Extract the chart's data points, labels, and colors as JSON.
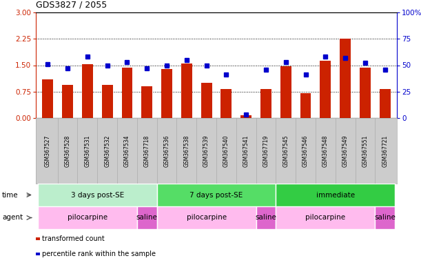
{
  "title": "GDS3827 / 2055",
  "samples": [
    "GSM367527",
    "GSM367528",
    "GSM367531",
    "GSM367532",
    "GSM367534",
    "GSM367718",
    "GSM367536",
    "GSM367538",
    "GSM367539",
    "GSM367540",
    "GSM367541",
    "GSM367719",
    "GSM367545",
    "GSM367546",
    "GSM367548",
    "GSM367549",
    "GSM367551",
    "GSM367721"
  ],
  "bar_values": [
    1.1,
    0.95,
    1.52,
    0.95,
    1.44,
    0.9,
    1.4,
    1.55,
    1.0,
    0.82,
    0.07,
    0.82,
    1.47,
    0.7,
    1.62,
    2.25,
    1.43,
    0.82
  ],
  "dot_values": [
    51,
    47,
    58,
    50,
    53,
    47,
    50,
    55,
    50,
    41,
    3,
    46,
    53,
    41,
    58,
    57,
    52,
    46
  ],
  "bar_color": "#cc2200",
  "dot_color": "#0000cc",
  "ylim_left": [
    0,
    3
  ],
  "ylim_right": [
    0,
    100
  ],
  "yticks_left": [
    0,
    0.75,
    1.5,
    2.25,
    3
  ],
  "yticks_right": [
    0,
    25,
    50,
    75,
    100
  ],
  "right_tick_labels": [
    "0",
    "25",
    "50",
    "75",
    "100%"
  ],
  "hlines": [
    0.75,
    1.5,
    2.25
  ],
  "time_groups": [
    {
      "label": "3 days post-SE",
      "start": 0,
      "end": 5,
      "color": "#bbeecc"
    },
    {
      "label": "7 days post-SE",
      "start": 6,
      "end": 11,
      "color": "#55dd66"
    },
    {
      "label": "immediate",
      "start": 12,
      "end": 17,
      "color": "#33cc44"
    }
  ],
  "agent_groups": [
    {
      "label": "pilocarpine",
      "start": 0,
      "end": 4,
      "color": "#ffbbee"
    },
    {
      "label": "saline",
      "start": 5,
      "end": 5,
      "color": "#dd66cc"
    },
    {
      "label": "pilocarpine",
      "start": 6,
      "end": 10,
      "color": "#ffbbee"
    },
    {
      "label": "saline",
      "start": 11,
      "end": 11,
      "color": "#dd66cc"
    },
    {
      "label": "pilocarpine",
      "start": 12,
      "end": 16,
      "color": "#ffbbee"
    },
    {
      "label": "saline",
      "start": 17,
      "end": 17,
      "color": "#dd66cc"
    }
  ],
  "time_label": "time",
  "agent_label": "agent",
  "legend1": "transformed count",
  "legend2": "percentile rank within the sample",
  "bg_color": "#ffffff",
  "tick_color_left": "#cc2200",
  "tick_color_right": "#0000cc",
  "sample_bg": "#cccccc",
  "sample_border": "#aaaaaa"
}
